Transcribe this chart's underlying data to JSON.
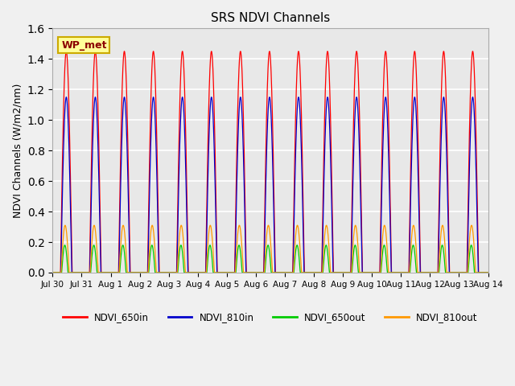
{
  "title": "SRS NDVI Channels",
  "ylabel": "NDVI Channels (W/m2/nm)",
  "ylim": [
    0,
    1.6
  ],
  "yticks": [
    0.0,
    0.2,
    0.4,
    0.6,
    0.8,
    1.0,
    1.2,
    1.4,
    1.6
  ],
  "annotation": "WP_met",
  "colors": {
    "NDVI_650in": "#ff0000",
    "NDVI_810in": "#0000cc",
    "NDVI_650out": "#00cc00",
    "NDVI_810out": "#ff9900"
  },
  "amplitudes": {
    "NDVI_650in": 1.45,
    "NDVI_810in": 1.15,
    "NDVI_650out": 0.18,
    "NDVI_810out": 0.31
  },
  "n_days": 15,
  "points_per_day": 300,
  "background_color": "#e8e8e8",
  "grid_color": "#ffffff",
  "x_tick_labels": [
    "Jul 30",
    "Jul 31",
    "Aug 1",
    "Aug 2",
    "Aug 3",
    "Aug 4",
    "Aug 5",
    "Aug 6",
    "Aug 7",
    "Aug 8",
    "Aug 9",
    "Aug 10",
    "Aug 11",
    "Aug 12",
    "Aug 13",
    "Aug 14"
  ],
  "legend_entries": [
    "NDVI_650in",
    "NDVI_810in",
    "NDVI_650out",
    "NDVI_810out"
  ],
  "fig_bg_color": "#f0f0f0"
}
